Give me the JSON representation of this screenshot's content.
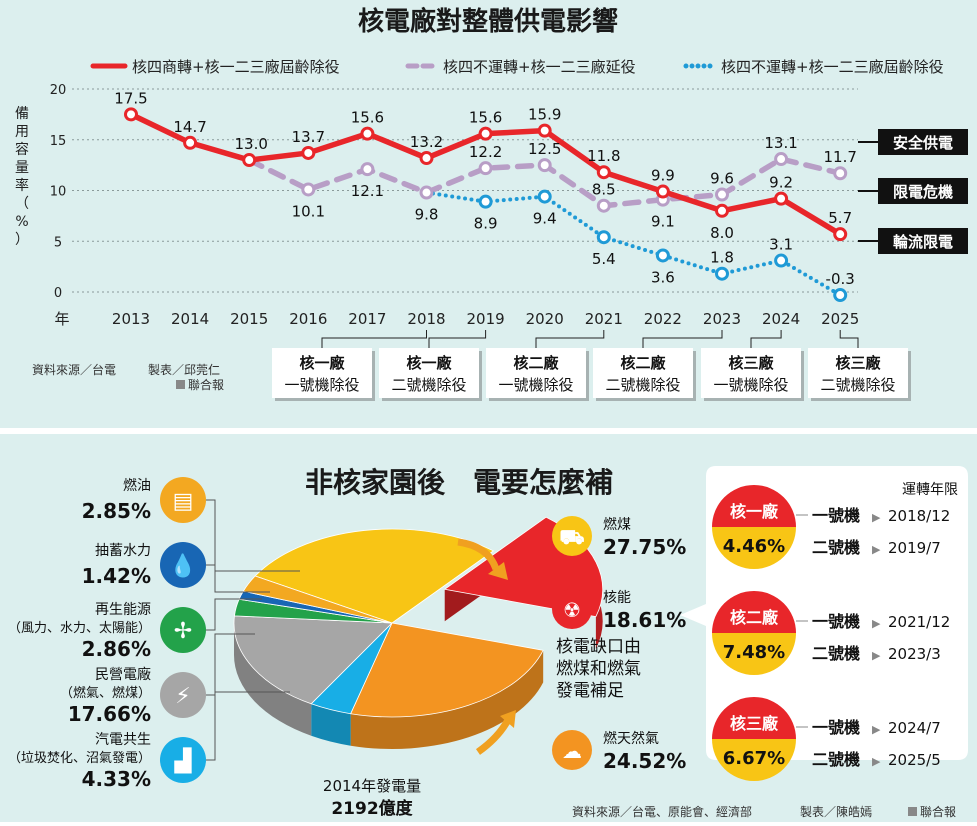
{
  "chart_data": [
    {
      "type": "line",
      "title": "核電廠對整體供電影響",
      "ylabel": "備用容量率（%）",
      "xlabel": "年",
      "ylim": [
        0,
        20
      ],
      "yticks": [
        0,
        5,
        10,
        15,
        20
      ],
      "x": [
        2013,
        2014,
        2015,
        2016,
        2017,
        2018,
        2019,
        2020,
        2021,
        2022,
        2023,
        2024,
        2025
      ],
      "series": [
        {
          "name": "核四商轉+核一二三廠屆齡除役",
          "color": "#e8262a",
          "style": "solid",
          "x": [
            2013,
            2014,
            2015,
            2016,
            2017,
            2018,
            2019,
            2020,
            2021,
            2022,
            2023,
            2024,
            2025
          ],
          "values": [
            17.5,
            14.7,
            13.0,
            13.7,
            15.6,
            13.2,
            15.6,
            15.9,
            11.8,
            9.9,
            8.0,
            9.2,
            5.7
          ],
          "labels": [
            "17.5",
            "14.7",
            "13.0",
            "13.7",
            "15.6",
            "13.2",
            "15.6",
            "15.9",
            "11.8",
            "9.9",
            "8.0",
            "9.2",
            "5.7"
          ]
        },
        {
          "name": "核四不運轉+核一二三廠延役",
          "color": "#b89ec6",
          "style": "dashed",
          "x": [
            2015,
            2016,
            2017,
            2018,
            2019,
            2020,
            2021,
            2022,
            2023,
            2024,
            2025
          ],
          "values": [
            13.0,
            10.1,
            12.1,
            9.8,
            12.2,
            12.5,
            8.5,
            9.1,
            9.6,
            13.1,
            11.7
          ],
          "labels": [
            "",
            "10.1",
            "12.1",
            "9.8",
            "12.2",
            "12.5",
            "8.5",
            "9.1",
            "9.6",
            "13.1",
            "11.7"
          ]
        },
        {
          "name": "核四不運轉+核一二三廠屆齡除役",
          "color": "#1f9ad6",
          "style": "dotted",
          "x": [
            2018,
            2019,
            2020,
            2021,
            2022,
            2023,
            2024,
            2025
          ],
          "values": [
            9.8,
            8.9,
            9.4,
            5.4,
            3.6,
            1.8,
            3.1,
            -0.3
          ],
          "labels": [
            "",
            "8.9",
            "9.4",
            "5.4",
            "3.6",
            "1.8",
            "3.1",
            "-0.3"
          ]
        }
      ],
      "bands": [
        "安全供電",
        "限電危機",
        "輪流限電"
      ],
      "decommissions": [
        {
          "plant": "核一廠",
          "unit": "一號機除役",
          "year": 2018
        },
        {
          "plant": "核一廠",
          "unit": "二號機除役",
          "year": 2019
        },
        {
          "plant": "核二廠",
          "unit": "一號機除役",
          "year": 2021
        },
        {
          "plant": "核二廠",
          "unit": "二號機除役",
          "year": 2023
        },
        {
          "plant": "核三廠",
          "unit": "一號機除役",
          "year": 2024
        },
        {
          "plant": "核三廠",
          "unit": "二號機除役",
          "year": 2025
        }
      ],
      "source": "資料來源／台電",
      "credit": "製表／邱莞仁",
      "publisher": "聯合報"
    },
    {
      "type": "pie",
      "title": "非核家園後　電要怎麼補",
      "center_label": "2014年發電量",
      "total": "2192億度",
      "slices": [
        {
          "name": "燃油",
          "value": 2.85,
          "label": "2.85%",
          "color": "#f3a821"
        },
        {
          "name": "抽蓄水力",
          "value": 1.42,
          "label": "1.42%",
          "color": "#1866b4"
        },
        {
          "name": "再生能源",
          "sub": "（風力、水力、太陽能）",
          "value": 2.86,
          "label": "2.86%",
          "color": "#23a24a"
        },
        {
          "name": "民營電廠",
          "sub": "（燃氣、燃煤）",
          "value": 17.66,
          "label": "17.66%",
          "color": "#a6a6a6"
        },
        {
          "name": "汽電共生",
          "sub": "（垃圾焚化、沼氣發電）",
          "value": 4.33,
          "label": "4.33%",
          "color": "#18aee6"
        },
        {
          "name": "燃天然氣",
          "value": 24.52,
          "label": "24.52%",
          "color": "#f39421"
        },
        {
          "name": "核能",
          "value": 18.61,
          "label": "18.61%",
          "color": "#e8262a"
        },
        {
          "name": "燃煤",
          "value": 27.75,
          "label": "27.75%",
          "color": "#f8c515"
        }
      ],
      "note_lines": [
        "核電缺口由",
        "燃煤和燃氣",
        "發電補足"
      ],
      "schedule_title": "運轉年限",
      "schedule": [
        {
          "plant": "核一廠",
          "share": "4.46%",
          "unit1_label": "一號機",
          "unit1": "2018/12",
          "unit2_label": "二號機",
          "unit2": "2019/7"
        },
        {
          "plant": "核二廠",
          "share": "7.48%",
          "unit1_label": "一號機",
          "unit1": "2021/12",
          "unit2_label": "二號機",
          "unit2": "2023/3"
        },
        {
          "plant": "核三廠",
          "share": "6.67%",
          "unit1_label": "一號機",
          "unit1": "2024/7",
          "unit2_label": "二號機",
          "unit2": "2025/5"
        }
      ],
      "source": "資料來源／台電、原能會、經濟部",
      "credit": "製表／陳皓嫣",
      "publisher": "聯合報"
    }
  ]
}
